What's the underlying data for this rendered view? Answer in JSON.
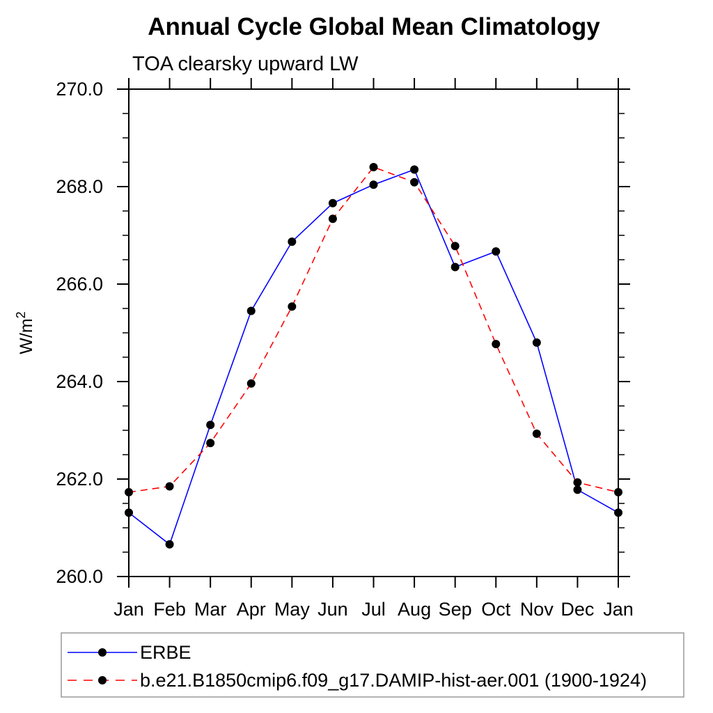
{
  "chart_data": {
    "type": "line",
    "title": "Annual Cycle Global Mean Climatology",
    "subtitle": "TOA clearsky upward LW",
    "ylabel": {
      "base": "W/m",
      "sup": "2"
    },
    "categories": [
      "Jan",
      "Feb",
      "Mar",
      "Apr",
      "May",
      "Jun",
      "Jul",
      "Aug",
      "Sep",
      "Oct",
      "Nov",
      "Dec",
      "Jan"
    ],
    "ylim": [
      260.0,
      270.0
    ],
    "ytick_values": [
      260,
      262,
      264,
      266,
      268,
      270
    ],
    "ytick_labels": [
      "260.0",
      "262.0",
      "264.0",
      "266.0",
      "268.0",
      "270.0"
    ],
    "yminor_interval": 0.5,
    "grid": false,
    "legend_position": "bottom-left",
    "axis_color": "#000000",
    "marker_color": "#000000",
    "legend_border_color": "#999999",
    "series": [
      {
        "name": "ERBE",
        "color": "#0000ff",
        "style": "solid",
        "marker": "circle",
        "values": [
          261.31,
          260.66,
          263.11,
          265.45,
          266.87,
          267.66,
          268.04,
          268.35,
          266.35,
          266.67,
          264.8,
          261.78,
          261.31
        ]
      },
      {
        "name": "b.e21.B1850cmip6.f09_g17.DAMIP-hist-aer.001 (1900-1924)",
        "color": "#ff0000",
        "style": "dashed",
        "marker": "circle",
        "values": [
          261.73,
          261.85,
          262.74,
          263.96,
          265.54,
          267.34,
          268.4,
          268.09,
          266.78,
          264.77,
          262.93,
          261.93,
          261.73
        ]
      }
    ]
  }
}
